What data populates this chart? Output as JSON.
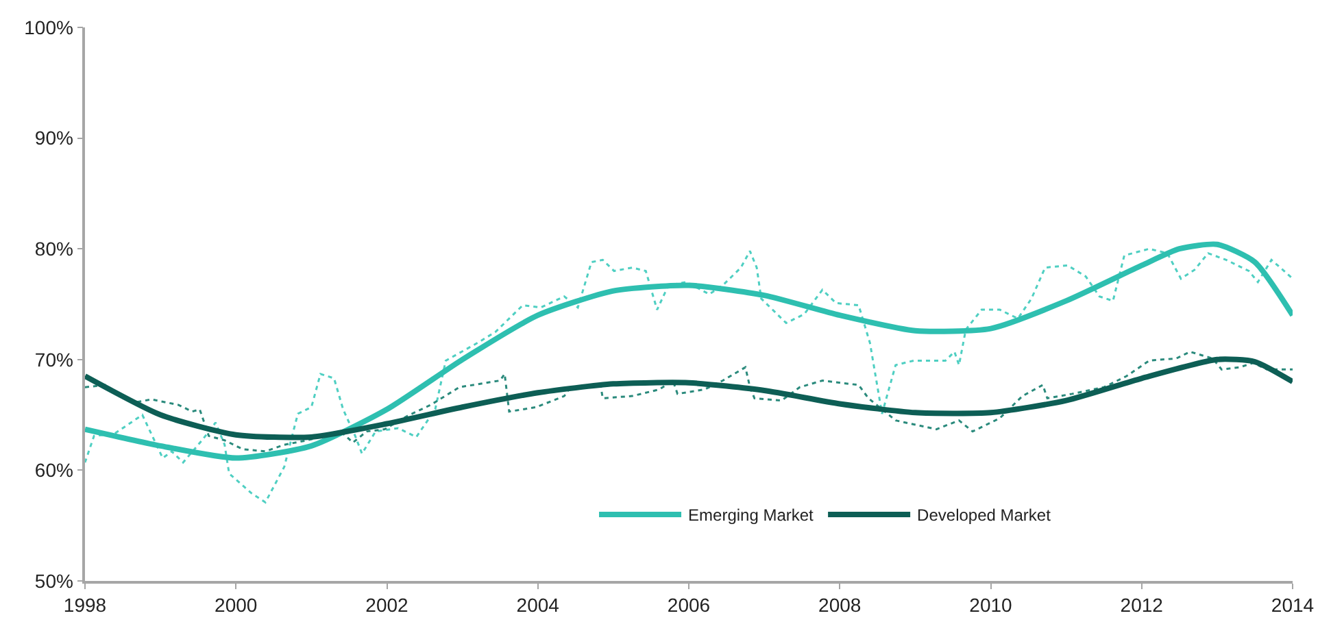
{
  "chart_data": {
    "type": "line",
    "xlim": [
      1998,
      2014
    ],
    "xticks": [
      1998,
      2000,
      2002,
      2004,
      2006,
      2008,
      2010,
      2012,
      2014
    ],
    "ylim": [
      50,
      100
    ],
    "yticks": [
      {
        "value": 50,
        "label": "50%"
      },
      {
        "value": 60,
        "label": "60%"
      },
      {
        "value": 70,
        "label": "70%"
      },
      {
        "value": 80,
        "label": "80%"
      },
      {
        "value": 90,
        "label": "90%"
      },
      {
        "value": 100,
        "label": "100%"
      }
    ],
    "grid": false,
    "legend": "bottom right",
    "marker": "none",
    "series": [
      {
        "color": "#4fcfc2",
        "line_style": "dotted",
        "x": [
          1998.0,
          1998.12,
          1998.39,
          1998.76,
          1999.03,
          1999.15,
          1999.3,
          1999.55,
          1999.73,
          1999.85,
          1999.91,
          2000.21,
          2000.39,
          2000.64,
          2000.82,
          2001.0,
          2001.12,
          2001.3,
          2001.42,
          2001.58,
          2001.67,
          2001.85,
          2002.15,
          2002.39,
          2002.64,
          2002.78,
          2003.2,
          2003.44,
          2003.8,
          2004.04,
          2004.35,
          2004.53,
          2004.71,
          2004.86,
          2005.01,
          2005.25,
          2005.43,
          2005.58,
          2005.73,
          2005.97,
          2006.27,
          2006.45,
          2006.69,
          2006.81,
          2006.9,
          2006.96,
          2007.29,
          2007.53,
          2007.77,
          2007.95,
          2008.25,
          2008.4,
          2008.56,
          2008.74,
          2008.98,
          2009.4,
          2009.52,
          2009.58,
          2009.67,
          2009.88,
          2010.12,
          2010.36,
          2010.54,
          2010.72,
          2011.02,
          2011.26,
          2011.44,
          2011.62,
          2011.77,
          2012.1,
          2012.34,
          2012.52,
          2012.7,
          2012.88,
          2013.12,
          2013.42,
          2013.54,
          2013.72,
          2013.87,
          2014.0
        ],
        "values": [
          60.7,
          63.1,
          63.3,
          65.0,
          61.1,
          61.7,
          60.7,
          62.7,
          64.3,
          62.3,
          59.7,
          57.9,
          57.1,
          60.3,
          65.1,
          65.7,
          68.7,
          68.3,
          65.5,
          63.1,
          61.5,
          63.5,
          63.8,
          63.0,
          65.5,
          69.9,
          71.5,
          72.5,
          74.9,
          74.7,
          75.7,
          74.7,
          78.8,
          79.0,
          78.0,
          78.3,
          78.0,
          74.5,
          76.7,
          77.0,
          75.9,
          76.7,
          78.3,
          79.8,
          78.3,
          75.5,
          73.3,
          74.1,
          76.3,
          75.1,
          74.9,
          71.5,
          65.1,
          69.5,
          69.9,
          69.9,
          70.7,
          69.5,
          72.7,
          74.5,
          74.5,
          73.7,
          75.5,
          78.3,
          78.5,
          77.5,
          75.7,
          75.3,
          79.4,
          80.0,
          79.6,
          77.3,
          78.1,
          79.6,
          79.0,
          78.0,
          77.0,
          79.0,
          78.1,
          77.3
        ]
      },
      {
        "color": "#2a8a7c",
        "line_style": "dotted",
        "x": [
          1998.0,
          1998.27,
          1998.64,
          1998.88,
          1999.24,
          1999.42,
          1999.52,
          1999.64,
          1999.85,
          2000.09,
          2000.39,
          2000.64,
          2000.94,
          2001.18,
          2001.42,
          2001.55,
          2001.73,
          2001.97,
          2002.27,
          2002.58,
          2002.96,
          2003.5,
          2003.56,
          2003.62,
          2003.98,
          2004.35,
          2004.41,
          2004.83,
          2004.86,
          2005.25,
          2005.61,
          2005.79,
          2005.85,
          2006.21,
          2006.45,
          2006.75,
          2006.81,
          2006.87,
          2007.23,
          2007.47,
          2007.77,
          2008.25,
          2008.38,
          2008.74,
          2009.28,
          2009.58,
          2009.76,
          2010.12,
          2010.42,
          2010.69,
          2010.75,
          2011.08,
          2011.5,
          2011.8,
          2012.1,
          2012.46,
          2012.64,
          2012.94,
          2013.06,
          2013.3,
          2013.48,
          2013.66,
          2014.0
        ],
        "values": [
          67.5,
          67.7,
          66.1,
          66.4,
          65.9,
          65.3,
          65.5,
          63.1,
          62.7,
          61.9,
          61.7,
          62.3,
          62.7,
          63.1,
          63.3,
          62.5,
          63.5,
          63.7,
          64.9,
          65.9,
          67.5,
          68.1,
          68.7,
          65.3,
          65.7,
          66.7,
          67.3,
          67.7,
          66.5,
          66.7,
          67.3,
          68.1,
          66.9,
          67.3,
          68.1,
          69.3,
          67.5,
          66.5,
          66.3,
          67.5,
          68.1,
          67.7,
          66.5,
          64.5,
          63.7,
          64.5,
          63.5,
          64.7,
          66.7,
          67.7,
          66.5,
          66.9,
          67.5,
          68.5,
          69.9,
          70.1,
          70.7,
          70.1,
          69.1,
          69.3,
          69.7,
          69.1,
          69.1
        ]
      },
      {
        "name": "Emerging Market",
        "color": "#2ebfb0",
        "line_style": "solid",
        "x": [
          1998,
          1999,
          2000,
          2001,
          2002,
          2003,
          2004,
          2005,
          2006,
          2007,
          2008,
          2009,
          2010,
          2011,
          2012,
          2012.5,
          2013,
          2013.5,
          2014
        ],
        "values": [
          63.7,
          62.2,
          61.1,
          62.2,
          65.5,
          70.0,
          74.0,
          76.2,
          76.7,
          75.8,
          74.0,
          72.6,
          72.8,
          75.3,
          78.5,
          80.0,
          80.4,
          78.8,
          74.0
        ]
      },
      {
        "name": "Developed Market",
        "color": "#0d5e55",
        "line_style": "solid",
        "x": [
          1998,
          1999,
          2000,
          2001,
          2002,
          2003,
          2004,
          2005,
          2006,
          2007,
          2008,
          2009,
          2010,
          2011,
          2012,
          2013,
          2013.5,
          2014
        ],
        "values": [
          68.5,
          65.0,
          63.2,
          63.0,
          64.2,
          65.7,
          67.0,
          67.8,
          67.9,
          67.2,
          66.0,
          65.2,
          65.2,
          66.3,
          68.3,
          70.0,
          69.8,
          68.0
        ]
      }
    ]
  }
}
